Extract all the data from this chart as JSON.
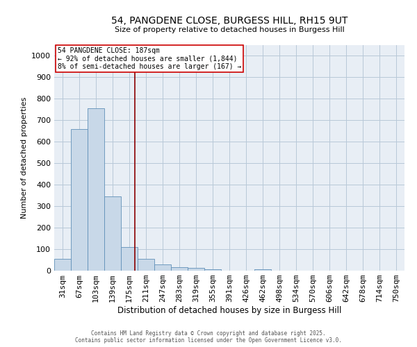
{
  "title": "54, PANGDENE CLOSE, BURGESS HILL, RH15 9UT",
  "subtitle": "Size of property relative to detached houses in Burgess Hill",
  "xlabel": "Distribution of detached houses by size in Burgess Hill",
  "ylabel": "Number of detached properties",
  "bar_color": "#c8d8e8",
  "bar_edge_color": "#6090b8",
  "grid_color": "#b8c8d8",
  "bg_color": "#e8eef5",
  "categories": [
    "31sqm",
    "67sqm",
    "103sqm",
    "139sqm",
    "175sqm",
    "211sqm",
    "247sqm",
    "283sqm",
    "319sqm",
    "355sqm",
    "391sqm",
    "426sqm",
    "462sqm",
    "498sqm",
    "534sqm",
    "570sqm",
    "606sqm",
    "642sqm",
    "678sqm",
    "714sqm",
    "750sqm"
  ],
  "values": [
    55,
    660,
    755,
    345,
    110,
    55,
    30,
    15,
    12,
    8,
    0,
    0,
    8,
    0,
    0,
    0,
    0,
    0,
    0,
    0,
    0
  ],
  "ylim": [
    0,
    1050
  ],
  "yticks": [
    0,
    100,
    200,
    300,
    400,
    500,
    600,
    700,
    800,
    900,
    1000
  ],
  "vline_color": "#8b0000",
  "annotation_text": "54 PANGDENE CLOSE: 187sqm\n← 92% of detached houses are smaller (1,844)\n8% of semi-detached houses are larger (167) →",
  "annotation_box_color": "#cc0000",
  "annotation_bg": "#ffffff",
  "footer1": "Contains HM Land Registry data © Crown copyright and database right 2025.",
  "footer2": "Contains public sector information licensed under the Open Government Licence v3.0."
}
